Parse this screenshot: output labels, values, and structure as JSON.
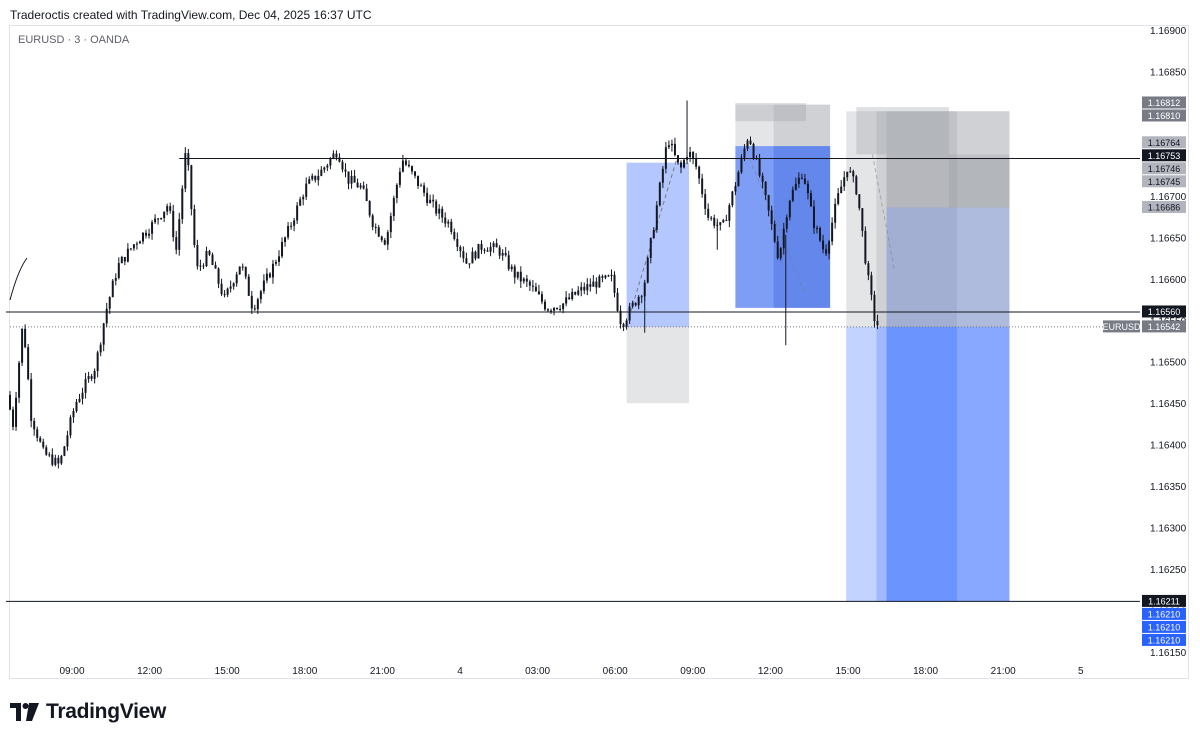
{
  "header": {
    "attribution": "Traderoctis created with TradingView.com, Dec 04, 2025 16:37 UTC"
  },
  "symbol": {
    "label": "EURUSD · 3 · OANDA"
  },
  "footer": {
    "logo_text": "TradingView"
  },
  "colors": {
    "candle": "#131722",
    "position_blue": "#2962ff",
    "position_grey": "#9598a1",
    "level_line": "#131722",
    "price_tag_black": "#131722",
    "price_tag_grey": "#787b86",
    "price_tag_blue": "#2962ff"
  },
  "chart_data": {
    "type": "candlestick",
    "symbol": "EURUSD",
    "timeframe": "3",
    "broker": "OANDA",
    "x_ticks": [
      "09:00",
      "12:00",
      "15:00",
      "18:00",
      "21:00",
      "4",
      "03:00",
      "06:00",
      "09:00",
      "12:00",
      "15:00",
      "18:00",
      "21:00",
      "5"
    ],
    "y_ticks": [
      "1.16900",
      "1.16850",
      "1.16800",
      "1.16750",
      "1.16700",
      "1.16650",
      "1.16600",
      "1.16550",
      "1.16500",
      "1.16450",
      "1.16400",
      "1.16350",
      "1.16300",
      "1.16250",
      "1.16200",
      "1.16150"
    ],
    "ylim": [
      1.1615,
      1.1691
    ],
    "current_price": 1.16542,
    "price_keypoints": [
      [
        0,
        1.1646
      ],
      [
        0.15,
        1.16425
      ],
      [
        0.4,
        1.1655
      ],
      [
        0.6,
        1.16435
      ],
      [
        0.9,
        1.1639
      ],
      [
        1.3,
        1.16375
      ],
      [
        1.7,
        1.1645
      ],
      [
        2.2,
        1.16495
      ],
      [
        2.45,
        1.1656
      ],
      [
        2.75,
        1.16615
      ],
      [
        3.2,
        1.16645
      ],
      [
        3.6,
        1.16665
      ],
      [
        4.0,
        1.1669
      ],
      [
        4.2,
        1.16635
      ],
      [
        4.45,
        1.1676
      ],
      [
        4.7,
        1.1661
      ],
      [
        5.0,
        1.1663
      ],
      [
        5.4,
        1.16575
      ],
      [
        5.8,
        1.1662
      ],
      [
        6.1,
        1.16565
      ],
      [
        6.35,
        1.1659
      ],
      [
        6.6,
        1.16615
      ],
      [
        7.0,
        1.1666
      ],
      [
        7.4,
        1.1671
      ],
      [
        7.8,
        1.1673
      ],
      [
        8.2,
        1.16755
      ],
      [
        8.45,
        1.1672
      ],
      [
        8.8,
        1.1671
      ],
      [
        9.1,
        1.16665
      ],
      [
        9.4,
        1.16645
      ],
      [
        9.8,
        1.16745
      ],
      [
        10.2,
        1.16715
      ],
      [
        10.6,
        1.16685
      ],
      [
        11.0,
        1.16665
      ],
      [
        11.4,
        1.1662
      ],
      [
        11.8,
        1.1664
      ],
      [
        12.2,
        1.16635
      ],
      [
        12.6,
        1.16605
      ],
      [
        13.0,
        1.1659
      ],
      [
        13.4,
        1.16565
      ],
      [
        13.8,
        1.1657
      ],
      [
        14.2,
        1.16585
      ],
      [
        14.6,
        1.16595
      ],
      [
        15.0,
        1.166
      ],
      [
        15.25,
        1.16545
      ],
      [
        15.5,
        1.16565
      ],
      [
        15.8,
        1.1659
      ],
      [
        16.1,
        1.1668
      ],
      [
        16.4,
        1.1677
      ],
      [
        16.7,
        1.1673
      ],
      [
        16.9,
        1.16755
      ],
      [
        17.1,
        1.16735
      ],
      [
        17.4,
        1.16675
      ],
      [
        17.75,
        1.1666
      ],
      [
        18.05,
        1.1671
      ],
      [
        18.4,
        1.16775
      ],
      [
        18.7,
        1.1672
      ],
      [
        18.9,
        1.1668
      ],
      [
        19.15,
        1.16625
      ],
      [
        19.4,
        1.16695
      ],
      [
        19.75,
        1.1673
      ],
      [
        20.0,
        1.1667
      ],
      [
        20.3,
        1.1663
      ],
      [
        20.6,
        1.16695
      ],
      [
        20.85,
        1.16735
      ],
      [
        21.1,
        1.16705
      ],
      [
        21.35,
        1.16605
      ],
      [
        21.55,
        1.16545
      ]
    ],
    "extra_spikes": [
      {
        "t": 15.75,
        "low": 1.16535
      },
      {
        "t": 16.8,
        "high": 1.16815
      },
      {
        "t": 19.25,
        "low": 1.1652
      },
      {
        "t": 17.55,
        "low": 1.16635
      }
    ],
    "horizontal_levels": [
      {
        "price": 1.16745,
        "from": 4.2,
        "to": 27.0
      },
      {
        "price": 1.1656,
        "from": -0.1,
        "to": 27.0
      },
      {
        "price": 1.16211,
        "from": -0.1,
        "to": 27.0
      }
    ],
    "dotted_line": {
      "price": 1.16542
    },
    "positions": [
      {
        "from": 15.3,
        "to": 16.85,
        "entry": 1.16542,
        "stop": 1.1645,
        "target": 1.1674,
        "opacity": 0.35
      },
      {
        "from": 18.0,
        "to": 20.35,
        "entry": 1.16565,
        "stop": 1.1681,
        "target": 1.1676,
        "opacity": 0.55
      },
      {
        "from": 18.95,
        "to": 20.35,
        "entry": 1.16565,
        "stop": 1.1681,
        "target": 1.1676,
        "opacity": 0.35
      },
      {
        "from": 20.75,
        "to": 24.8,
        "entry": 1.16542,
        "stop": 1.16802,
        "target": 1.16211,
        "opacity": 0.28
      },
      {
        "from": 21.5,
        "to": 24.8,
        "entry": 1.16542,
        "stop": 1.16802,
        "target": 1.16211,
        "opacity": 0.22
      },
      {
        "from": 21.75,
        "to": 23.5,
        "entry": 1.16542,
        "stop": 1.16802,
        "target": 1.16211,
        "opacity": 0.3
      },
      {
        "from": 21.75,
        "to": 24.8,
        "entry": 1.16686,
        "stop": 1.1675,
        "target": 1.16211,
        "opacity": 0.2
      }
    ],
    "grey_only_boxes": [
      {
        "from": 18.0,
        "to": 19.75,
        "top": 1.16812,
        "bottom": 1.1679
      },
      {
        "from": 21.0,
        "to": 23.3,
        "top": 1.16807,
        "bottom": 1.1675
      },
      {
        "from": 23.3,
        "to": 24.8,
        "top": 1.16745,
        "bottom": 1.16686
      }
    ],
    "price_tags": [
      {
        "price": 1.16812,
        "text": "1.16812",
        "style": "grey"
      },
      {
        "price": 1.1681,
        "text": "1.16810",
        "style": "grey"
      },
      {
        "price": 1.16764,
        "text": "1.16764",
        "style": "light"
      },
      {
        "price": 1.16753,
        "text": "1.16753",
        "style": "black"
      },
      {
        "price": 1.16746,
        "text": "1.16746",
        "style": "light"
      },
      {
        "price": 1.16745,
        "text": "1.16745",
        "style": "light"
      },
      {
        "price": 1.16686,
        "text": "1.16686",
        "style": "light"
      },
      {
        "price": 1.1656,
        "text": "1.16560",
        "style": "black"
      },
      {
        "price": 1.16542,
        "text": "1.16542",
        "style": "grey",
        "label": "EURUSD"
      },
      {
        "price": 1.16211,
        "text": "1.16211",
        "style": "black"
      },
      {
        "price": 1.1621,
        "text": "1.16210",
        "style": "blue"
      },
      {
        "price": 1.1621,
        "text": "1.16210",
        "style": "blue"
      },
      {
        "price": 1.1621,
        "text": "1.16210",
        "style": "blue"
      }
    ]
  }
}
